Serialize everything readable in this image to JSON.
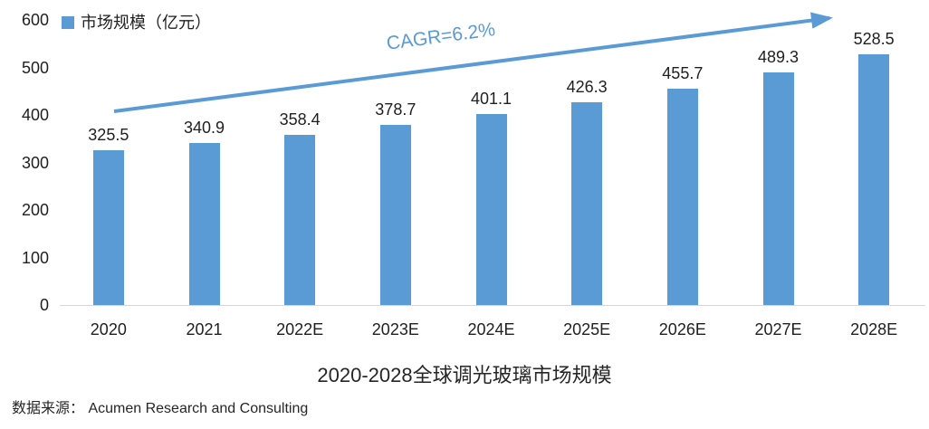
{
  "chart_data": {
    "type": "bar",
    "title": "2020-2028全球调光玻璃市场规模",
    "legend": "市场规模（亿元）",
    "categories": [
      "2020",
      "2021",
      "2022E",
      "2023E",
      "2024E",
      "2025E",
      "2026E",
      "2027E",
      "2028E"
    ],
    "values": [
      325.5,
      340.9,
      358.4,
      378.7,
      401.1,
      426.3,
      455.7,
      489.3,
      528.5
    ],
    "xlabel": "",
    "ylabel": "",
    "ylim": [
      0,
      600
    ],
    "yticks": [
      0,
      100,
      200,
      300,
      400,
      500,
      600
    ],
    "grid": false,
    "legend_position": "top-left",
    "annotation": "CAGR=6.2%",
    "bar_color": "#5B9BD5",
    "arrow_color": "#5B9BD5",
    "annotation_color": "#5B9BD5",
    "text_color": "#1f1f1f",
    "axis_line_color": "#d6d6d6"
  },
  "source": "数据来源： Acumen Research and Consulting"
}
